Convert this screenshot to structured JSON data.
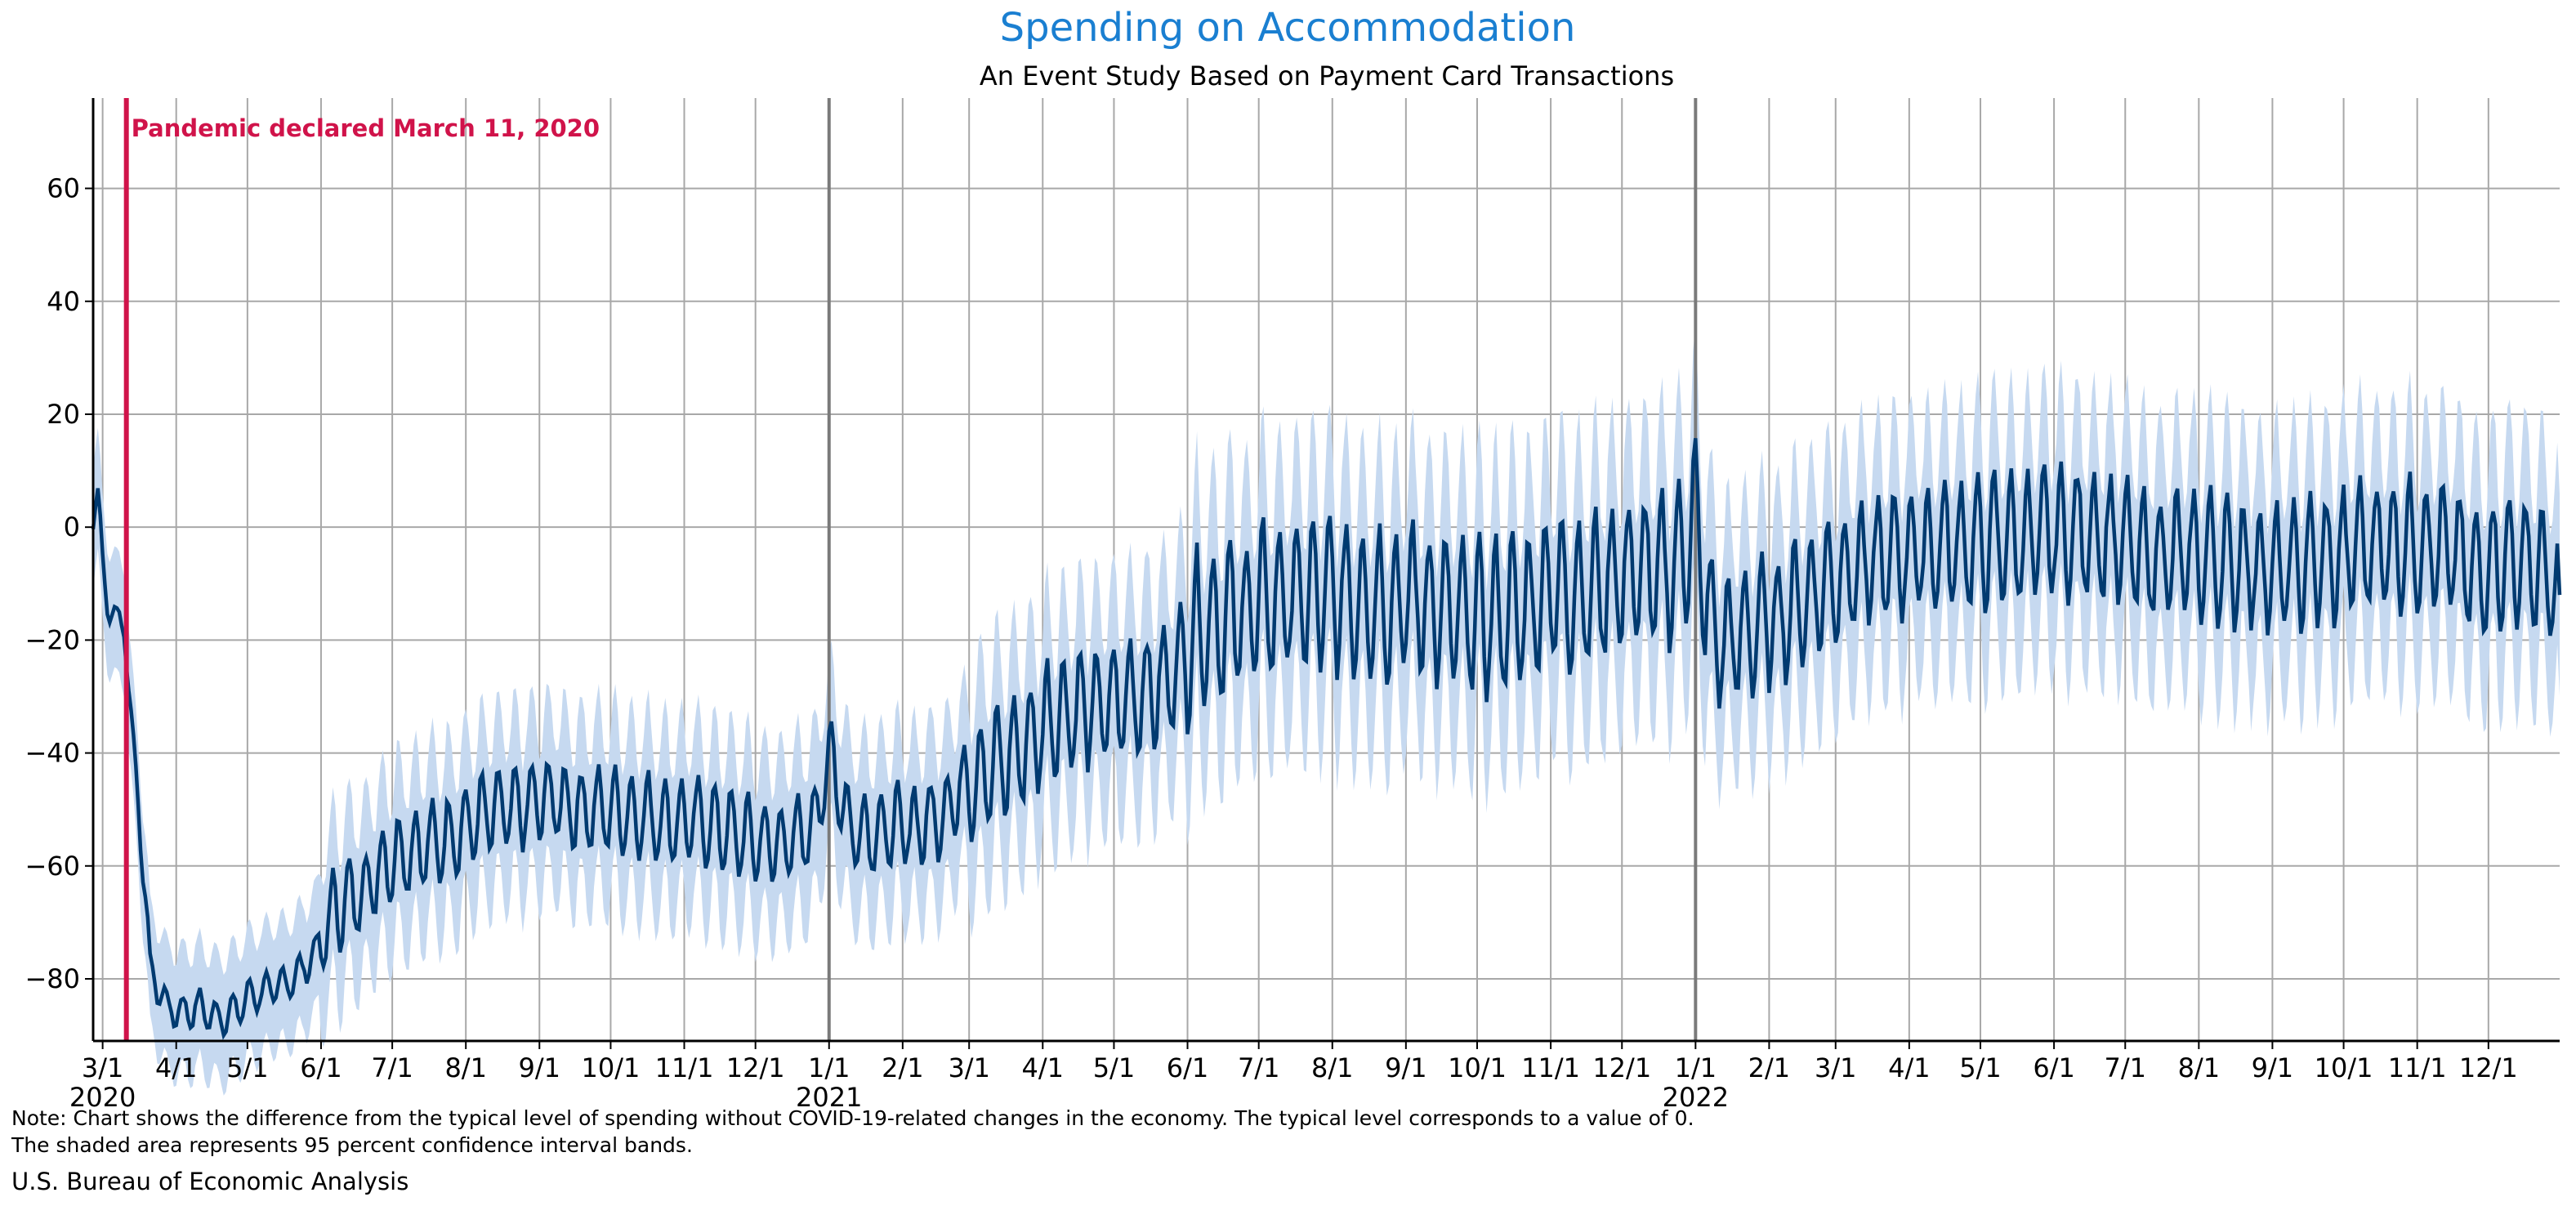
{
  "colors": {
    "title": "#1a7fd1",
    "line": "#003a70",
    "band": "#c6d9f0",
    "event": "#d0134a",
    "grid": "#a8a8a8",
    "year_line": "#7a7a7a"
  },
  "chart_data": {
    "type": "line",
    "title": "Spending on Accommodation",
    "subtitle": "An Event Study Based on Payment Card Transactions",
    "xlabel": "",
    "ylabel": "",
    "x_range": [
      "2020-02-26",
      "2022-12-31"
    ],
    "ylim": [
      -91,
      76
    ],
    "y_ticks": [
      -80,
      -60,
      -40,
      -20,
      0,
      20,
      40,
      60
    ],
    "y_tick_labels": [
      "−80",
      "−60",
      "−40",
      "−20",
      "0",
      "20",
      "40",
      "60"
    ],
    "x_ticks": [
      {
        "date": "2020-03-01",
        "label": "3/1"
      },
      {
        "date": "2020-04-01",
        "label": "4/1"
      },
      {
        "date": "2020-05-01",
        "label": "5/1"
      },
      {
        "date": "2020-06-01",
        "label": "6/1"
      },
      {
        "date": "2020-07-01",
        "label": "7/1"
      },
      {
        "date": "2020-08-01",
        "label": "8/1"
      },
      {
        "date": "2020-09-01",
        "label": "9/1"
      },
      {
        "date": "2020-10-01",
        "label": "10/1"
      },
      {
        "date": "2020-11-01",
        "label": "11/1"
      },
      {
        "date": "2020-12-01",
        "label": "12/1"
      },
      {
        "date": "2021-01-01",
        "label": "1/1"
      },
      {
        "date": "2021-02-01",
        "label": "2/1"
      },
      {
        "date": "2021-03-01",
        "label": "3/1"
      },
      {
        "date": "2021-04-01",
        "label": "4/1"
      },
      {
        "date": "2021-05-01",
        "label": "5/1"
      },
      {
        "date": "2021-06-01",
        "label": "6/1"
      },
      {
        "date": "2021-07-01",
        "label": "7/1"
      },
      {
        "date": "2021-08-01",
        "label": "8/1"
      },
      {
        "date": "2021-09-01",
        "label": "9/1"
      },
      {
        "date": "2021-10-01",
        "label": "10/1"
      },
      {
        "date": "2021-11-01",
        "label": "11/1"
      },
      {
        "date": "2021-12-01",
        "label": "12/1"
      },
      {
        "date": "2022-01-01",
        "label": "1/1"
      },
      {
        "date": "2022-02-01",
        "label": "2/1"
      },
      {
        "date": "2022-03-01",
        "label": "3/1"
      },
      {
        "date": "2022-04-01",
        "label": "4/1"
      },
      {
        "date": "2022-05-01",
        "label": "5/1"
      },
      {
        "date": "2022-06-01",
        "label": "6/1"
      },
      {
        "date": "2022-07-01",
        "label": "7/1"
      },
      {
        "date": "2022-08-01",
        "label": "8/1"
      },
      {
        "date": "2022-09-01",
        "label": "9/1"
      },
      {
        "date": "2022-10-01",
        "label": "10/1"
      },
      {
        "date": "2022-11-01",
        "label": "11/1"
      },
      {
        "date": "2022-12-01",
        "label": "12/1"
      }
    ],
    "year_labels": [
      {
        "date": "2020-03-01",
        "label": "2020"
      },
      {
        "date": "2021-01-01",
        "label": "2021"
      },
      {
        "date": "2022-01-01",
        "label": "2022"
      }
    ],
    "year_lines": [
      "2021-01-01",
      "2022-01-01"
    ],
    "event": {
      "date": "2020-03-11",
      "label": "Pandemic declared March 11, 2020"
    },
    "grid": true,
    "series": [
      {
        "kind": "estimate",
        "points": [
          [
            "2020-02-26",
            2
          ],
          [
            "2020-02-28",
            5
          ],
          [
            "2020-03-01",
            -6
          ],
          [
            "2020-03-04",
            -15
          ],
          [
            "2020-03-07",
            -17
          ],
          [
            "2020-03-10",
            -16
          ],
          [
            "2020-03-13",
            -35
          ],
          [
            "2020-03-16",
            -48
          ],
          [
            "2020-03-21",
            -78
          ],
          [
            "2020-03-28",
            -85
          ],
          [
            "2020-04-04",
            -86
          ],
          [
            "2020-04-11",
            -85
          ],
          [
            "2020-04-18",
            -87
          ],
          [
            "2020-04-25",
            -86
          ],
          [
            "2020-05-02",
            -83
          ],
          [
            "2020-05-09",
            -82
          ],
          [
            "2020-05-16",
            -81
          ],
          [
            "2020-05-23",
            -79
          ],
          [
            "2020-05-30",
            -75
          ],
          [
            "2020-06-06",
            -68
          ],
          [
            "2020-06-13",
            -66
          ],
          [
            "2020-06-20",
            -64
          ],
          [
            "2020-06-27",
            -60
          ],
          [
            "2020-07-04",
            -58
          ],
          [
            "2020-07-11",
            -57
          ],
          [
            "2020-07-18",
            -56
          ],
          [
            "2020-07-25",
            -55
          ],
          [
            "2020-08-01",
            -53
          ],
          [
            "2020-08-08",
            -51
          ],
          [
            "2020-08-15",
            -50
          ],
          [
            "2020-08-22",
            -50
          ],
          [
            "2020-08-29",
            -49
          ],
          [
            "2020-09-05",
            -48
          ],
          [
            "2020-09-12",
            -49
          ],
          [
            "2020-09-19",
            -50
          ],
          [
            "2020-09-26",
            -50
          ],
          [
            "2020-10-03",
            -50
          ],
          [
            "2020-10-10",
            -51
          ],
          [
            "2020-10-17",
            -51
          ],
          [
            "2020-10-24",
            -52
          ],
          [
            "2020-10-31",
            -52
          ],
          [
            "2020-11-07",
            -52
          ],
          [
            "2020-11-14",
            -53
          ],
          [
            "2020-11-21",
            -54
          ],
          [
            "2020-11-28",
            -55
          ],
          [
            "2020-12-05",
            -56
          ],
          [
            "2020-12-12",
            -56
          ],
          [
            "2020-12-19",
            -55
          ],
          [
            "2020-12-26",
            -52
          ],
          [
            "2021-01-02",
            -40
          ],
          [
            "2021-01-09",
            -53
          ],
          [
            "2021-01-16",
            -54
          ],
          [
            "2021-01-23",
            -54
          ],
          [
            "2021-01-30",
            -53
          ],
          [
            "2021-02-06",
            -53
          ],
          [
            "2021-02-13",
            -52
          ],
          [
            "2021-02-20",
            -50
          ],
          [
            "2021-02-27",
            -45
          ],
          [
            "2021-03-06",
            -44
          ],
          [
            "2021-03-13",
            -42
          ],
          [
            "2021-03-20",
            -40
          ],
          [
            "2021-03-27",
            -38
          ],
          [
            "2021-04-03",
            -34
          ],
          [
            "2021-04-10",
            -33
          ],
          [
            "2021-04-17",
            -32
          ],
          [
            "2021-04-24",
            -32
          ],
          [
            "2021-05-01",
            -31
          ],
          [
            "2021-05-08",
            -30
          ],
          [
            "2021-05-15",
            -29
          ],
          [
            "2021-05-22",
            -28
          ],
          [
            "2021-05-29",
            -24
          ],
          [
            "2021-06-05",
            -18
          ],
          [
            "2021-06-12",
            -17
          ],
          [
            "2021-06-19",
            -16
          ],
          [
            "2021-06-26",
            -15
          ],
          [
            "2021-07-03",
            -13
          ],
          [
            "2021-07-10",
            -13
          ],
          [
            "2021-07-17",
            -12
          ],
          [
            "2021-07-24",
            -12
          ],
          [
            "2021-07-31",
            -12
          ],
          [
            "2021-08-07",
            -12
          ],
          [
            "2021-08-14",
            -13
          ],
          [
            "2021-08-21",
            -13
          ],
          [
            "2021-08-28",
            -14
          ],
          [
            "2021-09-04",
            -12
          ],
          [
            "2021-09-11",
            -14
          ],
          [
            "2021-09-18",
            -15
          ],
          [
            "2021-09-25",
            -16
          ],
          [
            "2021-10-02",
            -16
          ],
          [
            "2021-10-09",
            -16
          ],
          [
            "2021-10-16",
            -15
          ],
          [
            "2021-10-23",
            -14
          ],
          [
            "2021-10-30",
            -11
          ],
          [
            "2021-11-06",
            -11
          ],
          [
            "2021-11-13",
            -12
          ],
          [
            "2021-11-20",
            -11
          ],
          [
            "2021-11-27",
            -9
          ],
          [
            "2021-12-04",
            -8
          ],
          [
            "2021-12-11",
            -8
          ],
          [
            "2021-12-18",
            -8
          ],
          [
            "2021-12-25",
            -6
          ],
          [
            "2022-01-01",
            2
          ],
          [
            "2022-01-08",
            -20
          ],
          [
            "2022-01-15",
            -20
          ],
          [
            "2022-01-22",
            -19
          ],
          [
            "2022-01-29",
            -17
          ],
          [
            "2022-02-05",
            -16
          ],
          [
            "2022-02-12",
            -14
          ],
          [
            "2022-02-19",
            -12
          ],
          [
            "2022-02-26",
            -10
          ],
          [
            "2022-03-05",
            -8
          ],
          [
            "2022-03-12",
            -7
          ],
          [
            "2022-03-19",
            -6
          ],
          [
            "2022-03-26",
            -5
          ],
          [
            "2022-04-02",
            -4
          ],
          [
            "2022-04-09",
            -4
          ],
          [
            "2022-04-16",
            -3
          ],
          [
            "2022-04-23",
            -3
          ],
          [
            "2022-04-30",
            -3
          ],
          [
            "2022-05-07",
            -2
          ],
          [
            "2022-05-14",
            -2
          ],
          [
            "2022-05-21",
            -2
          ],
          [
            "2022-05-28",
            -1
          ],
          [
            "2022-06-04",
            -1
          ],
          [
            "2022-06-11",
            -1
          ],
          [
            "2022-06-18",
            -1
          ],
          [
            "2022-06-25",
            -2
          ],
          [
            "2022-07-02",
            -3
          ],
          [
            "2022-07-09",
            -5
          ],
          [
            "2022-07-16",
            -5
          ],
          [
            "2022-07-23",
            -5
          ],
          [
            "2022-07-30",
            -5
          ],
          [
            "2022-08-06",
            -5
          ],
          [
            "2022-08-13",
            -6
          ],
          [
            "2022-08-20",
            -6
          ],
          [
            "2022-08-27",
            -7
          ],
          [
            "2022-09-03",
            -8
          ],
          [
            "2022-09-10",
            -7
          ],
          [
            "2022-09-17",
            -6
          ],
          [
            "2022-09-24",
            -6
          ],
          [
            "2022-10-01",
            -5
          ],
          [
            "2022-10-08",
            -3
          ],
          [
            "2022-10-15",
            -3
          ],
          [
            "2022-10-22",
            -3
          ],
          [
            "2022-10-29",
            -3
          ],
          [
            "2022-11-05",
            -3
          ],
          [
            "2022-11-12",
            -4
          ],
          [
            "2022-11-19",
            -5
          ],
          [
            "2022-11-26",
            -9
          ],
          [
            "2022-12-03",
            -6
          ],
          [
            "2022-12-10",
            -6
          ],
          [
            "2022-12-17",
            -6
          ],
          [
            "2022-12-24",
            -8
          ],
          [
            "2022-12-31",
            -12
          ]
        ]
      }
    ]
  },
  "notes": {
    "line1": "Note: Chart shows the difference from the typical level of spending without COVID-19-related changes in the economy. The typical level corresponds to a value of 0.",
    "line2": "The shaded area represents 95 percent confidence interval bands.",
    "source": "U.S. Bureau of Economic Analysis"
  }
}
